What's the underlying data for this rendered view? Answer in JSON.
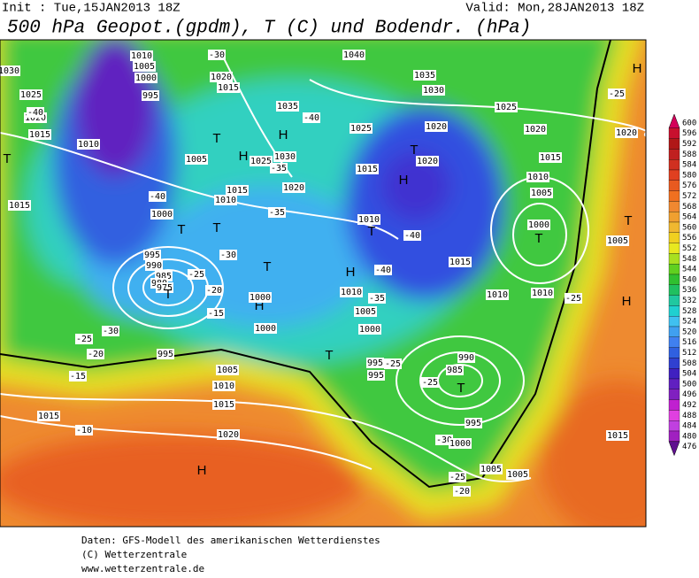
{
  "header": {
    "init": "Init : Tue,15JAN2013 18Z",
    "valid": "Valid: Mon,28JAN2013 18Z",
    "title": "500 hPa Geopot.(gpdm), T (C) und Bodendr. (hPa)"
  },
  "colorbar": {
    "labels": [
      600,
      596,
      592,
      588,
      584,
      580,
      576,
      572,
      568,
      564,
      560,
      556,
      552,
      548,
      544,
      540,
      536,
      532,
      528,
      524,
      520,
      516,
      512,
      508,
      504,
      500,
      496,
      492,
      488,
      484,
      480,
      476
    ],
    "colors": [
      "#d4005a",
      "#c8102e",
      "#b01818",
      "#c02020",
      "#d03020",
      "#e04020",
      "#e85a20",
      "#f07020",
      "#f08830",
      "#f0a030",
      "#f0b830",
      "#f0d020",
      "#e8e820",
      "#a8e020",
      "#60d020",
      "#30c030",
      "#20c060",
      "#20c8a0",
      "#20d0d0",
      "#40c0f0",
      "#40a0f0",
      "#4080f0",
      "#3060e0",
      "#3040d0",
      "#4020c0",
      "#6020c0",
      "#8020c0",
      "#c020d0",
      "#e040e0",
      "#c040e0",
      "#a020c0",
      "#601090"
    ]
  },
  "map_labels": [
    "1030",
    "1025",
    "1020",
    "1015",
    "1010",
    "T",
    "1015",
    "1010",
    "1005",
    "1000",
    "995",
    "-40",
    "-30",
    "1020",
    "1015",
    "T",
    "H",
    "1035",
    "H",
    "1025",
    "1030",
    "-35",
    "1020",
    "1015",
    "1010",
    "-35",
    "1005",
    "-40",
    "1000",
    "T",
    "T",
    "-30",
    "995",
    "990",
    "985",
    "980",
    "975",
    "T",
    "-25",
    "-20",
    "-15",
    "H",
    "1000",
    "1000",
    "995",
    "-25",
    "-20",
    "-30",
    "-15",
    "1005",
    "1010",
    "1015",
    "1015",
    "-10",
    "1020",
    "H",
    "1040",
    "1035",
    "1030",
    "1025",
    "-40",
    "1025",
    "1020",
    "1020",
    "1020",
    "T",
    "1020",
    "1015",
    "H",
    "1015",
    "1010",
    "1005",
    "1010",
    "T",
    "-40",
    "1000",
    "T",
    "1005",
    "T",
    "H",
    "-25",
    "1015",
    "H",
    "-40",
    "1010",
    "-35",
    "1010",
    "1010",
    "-25",
    "H",
    "1005",
    "1000",
    "T",
    "995",
    "-25",
    "995",
    "990",
    "985",
    "-25",
    "T",
    "995",
    "-30",
    "1000",
    "1005",
    "1005",
    "-25",
    "-20",
    "1015",
    "T"
  ],
  "footer": [
    "Daten: GFS-Modell des amerikanischen Wetterdienstes",
    "(C) Wetterzentrale",
    "www.wetterzentrale.de"
  ]
}
